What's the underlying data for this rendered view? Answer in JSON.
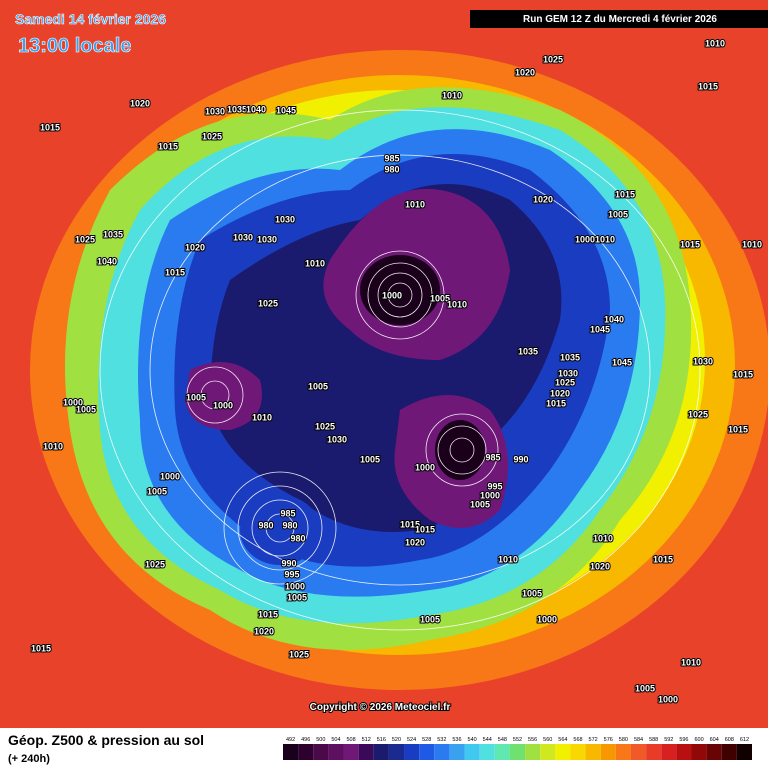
{
  "header": {
    "date": "Samedi 14 février 2026",
    "time": "13:00 locale",
    "run": "Run GEM 12 Z du Mercredi 4 février 2026"
  },
  "copyright": "Copyright © 2026 Meteociel.fr",
  "footer": {
    "title": "Géop. Z500 & pression au sol",
    "lead": "(+ 240h)"
  },
  "colorbar": [
    {
      "label": "492",
      "color": "#1a001a"
    },
    {
      "label": "496",
      "color": "#2e002e"
    },
    {
      "label": "500",
      "color": "#4a0a4a"
    },
    {
      "label": "504",
      "color": "#5e1060"
    },
    {
      "label": "508",
      "color": "#701878"
    },
    {
      "label": "512",
      "color": "#3a0a5a"
    },
    {
      "label": "516",
      "color": "#1a1a6e"
    },
    {
      "label": "520",
      "color": "#1a2a90"
    },
    {
      "label": "524",
      "color": "#1a3cc0"
    },
    {
      "label": "528",
      "color": "#1e5ae6"
    },
    {
      "label": "532",
      "color": "#2a7af0"
    },
    {
      "label": "536",
      "color": "#3aa0f0"
    },
    {
      "label": "540",
      "color": "#40c8f0"
    },
    {
      "label": "544",
      "color": "#50e0e0"
    },
    {
      "label": "548",
      "color": "#60e8b0"
    },
    {
      "label": "552",
      "color": "#70e070"
    },
    {
      "label": "556",
      "color": "#a0e040"
    },
    {
      "label": "560",
      "color": "#d0e820"
    },
    {
      "label": "564",
      "color": "#f0f000"
    },
    {
      "label": "568",
      "color": "#f8d800"
    },
    {
      "label": "572",
      "color": "#f8b800"
    },
    {
      "label": "576",
      "color": "#f89800"
    },
    {
      "label": "580",
      "color": "#f87818"
    },
    {
      "label": "584",
      "color": "#f05a28"
    },
    {
      "label": "588",
      "color": "#e83c28"
    },
    {
      "label": "592",
      "color": "#d82020"
    },
    {
      "label": "596",
      "color": "#b81010"
    },
    {
      "label": "600",
      "color": "#900808"
    },
    {
      "label": "604",
      "color": "#680404"
    },
    {
      "label": "608",
      "color": "#400000"
    },
    {
      "label": "612",
      "color": "#100000"
    }
  ],
  "isobar_labels": [
    "1015",
    "1020",
    "1030",
    "1035",
    "1040",
    "1045",
    "1025",
    "1015",
    "1010",
    "1020",
    "1025",
    "1010",
    "1015",
    "985",
    "980",
    "1010",
    "1020",
    "1015",
    "1005",
    "1000",
    "1010",
    "1015",
    "1030",
    "1030",
    "1030",
    "1020",
    "1025",
    "1035",
    "1040",
    "1015",
    "1010",
    "1025",
    "1000",
    "1005",
    "1010",
    "1045",
    "1040",
    "1035",
    "1035",
    "1045",
    "1030",
    "1025",
    "1020",
    "1015",
    "1030",
    "1015",
    "1025",
    "1015",
    "1005",
    "1000",
    "1005",
    "1010",
    "1025",
    "1030",
    "1005",
    "1000",
    "985",
    "990",
    "995",
    "1000",
    "1005",
    "1010",
    "1000",
    "1005",
    "1000",
    "1005",
    "985",
    "980",
    "980",
    "980",
    "990",
    "995",
    "1000",
    "1005",
    "1015",
    "1015",
    "1020",
    "1010",
    "1010",
    "1020",
    "1015",
    "1005",
    "1000",
    "1005",
    "1025",
    "1015",
    "1020",
    "1025",
    "1015",
    "1010",
    "1005",
    "1000",
    "1010"
  ]
}
